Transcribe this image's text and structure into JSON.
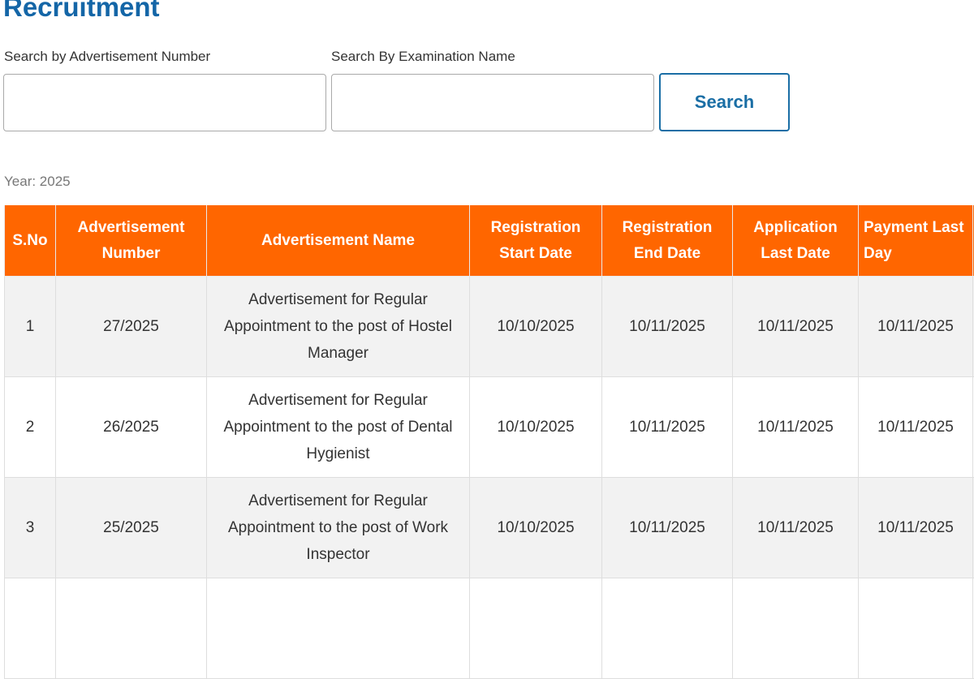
{
  "page": {
    "title": "Recruitment"
  },
  "search": {
    "adv_number_label": "Search by Advertisement Number",
    "adv_number_value": "",
    "exam_name_label": "Search By Examination Name",
    "exam_name_value": "",
    "button_label": "Search"
  },
  "year_label": "Year: 2025",
  "colors": {
    "header_bg": "#ff6600",
    "title": "#1466a7",
    "button": "#1a6ea5"
  },
  "table": {
    "columns": [
      "S.No",
      "Advertisement Number",
      "Advertisement Name",
      "Registration Start Date",
      "Registration End Date",
      "Application Last Date",
      "Payment Last Day"
    ],
    "rows": [
      [
        "1",
        "27/2025",
        "Advertisement for Regular Appointment to the post of Hostel Manager",
        "10/10/2025",
        "10/11/2025",
        "10/11/2025",
        "10/11/2025"
      ],
      [
        "2",
        "26/2025",
        "Advertisement for Regular Appointment to the post of Dental Hygienist",
        "10/10/2025",
        "10/11/2025",
        "10/11/2025",
        "10/11/2025"
      ],
      [
        "3",
        "25/2025",
        "Advertisement for Regular Appointment to the post of Work Inspector",
        "10/10/2025",
        "10/11/2025",
        "10/11/2025",
        "10/11/2025"
      ],
      [
        "",
        "",
        "",
        "",
        "",
        "",
        ""
      ]
    ]
  }
}
